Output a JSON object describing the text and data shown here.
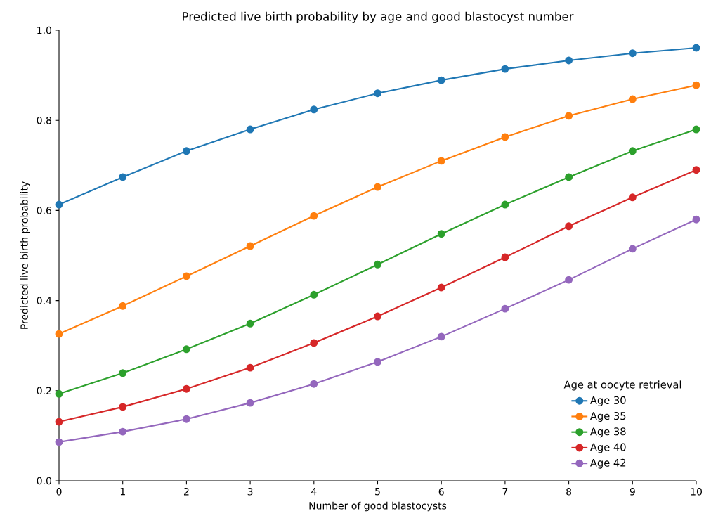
{
  "chart_data": {
    "type": "line",
    "title": "Predicted live birth probability by age and good blastocyst number",
    "xlabel": "Number of good blastocysts",
    "ylabel": "Predicted live birth probability",
    "legend_title": "Age at oocyte retrieval",
    "x": [
      0,
      1,
      2,
      3,
      4,
      5,
      6,
      7,
      8,
      9,
      10
    ],
    "series": [
      {
        "name": "Age 30",
        "color": "#1f77b4",
        "values": [
          0.613,
          0.674,
          0.732,
          0.78,
          0.824,
          0.86,
          0.889,
          0.914,
          0.933,
          0.949,
          0.961
        ]
      },
      {
        "name": "Age 35",
        "color": "#ff7f0e",
        "values": [
          0.326,
          0.388,
          0.454,
          0.521,
          0.588,
          0.652,
          0.71,
          0.763,
          0.81,
          0.847,
          0.878
        ]
      },
      {
        "name": "Age 38",
        "color": "#2ca02c",
        "values": [
          0.193,
          0.239,
          0.292,
          0.349,
          0.413,
          0.48,
          0.548,
          0.613,
          0.674,
          0.732,
          0.78
        ]
      },
      {
        "name": "Age 40",
        "color": "#d62728",
        "values": [
          0.131,
          0.164,
          0.204,
          0.251,
          0.306,
          0.365,
          0.429,
          0.496,
          0.565,
          0.629,
          0.69
        ]
      },
      {
        "name": "Age 42",
        "color": "#9467bd",
        "values": [
          0.086,
          0.109,
          0.137,
          0.173,
          0.215,
          0.264,
          0.32,
          0.382,
          0.446,
          0.515,
          0.58
        ]
      }
    ],
    "xlim": [
      0,
      10
    ],
    "ylim": [
      0,
      1.0
    ],
    "xticks": [
      0,
      1,
      2,
      3,
      4,
      5,
      6,
      7,
      8,
      9,
      10
    ],
    "yticks": [
      {
        "value": 0,
        "label": "0.0"
      },
      {
        "value": 0.2,
        "label": "0.2"
      },
      {
        "value": 0.4,
        "label": "0.4"
      },
      {
        "value": 0.6,
        "label": "0.6"
      },
      {
        "value": 0.8,
        "label": "0.8"
      },
      {
        "value": 1.0,
        "label": "1.0"
      }
    ],
    "legend": "bottom right",
    "marker": "circle",
    "line_style": "solid"
  }
}
